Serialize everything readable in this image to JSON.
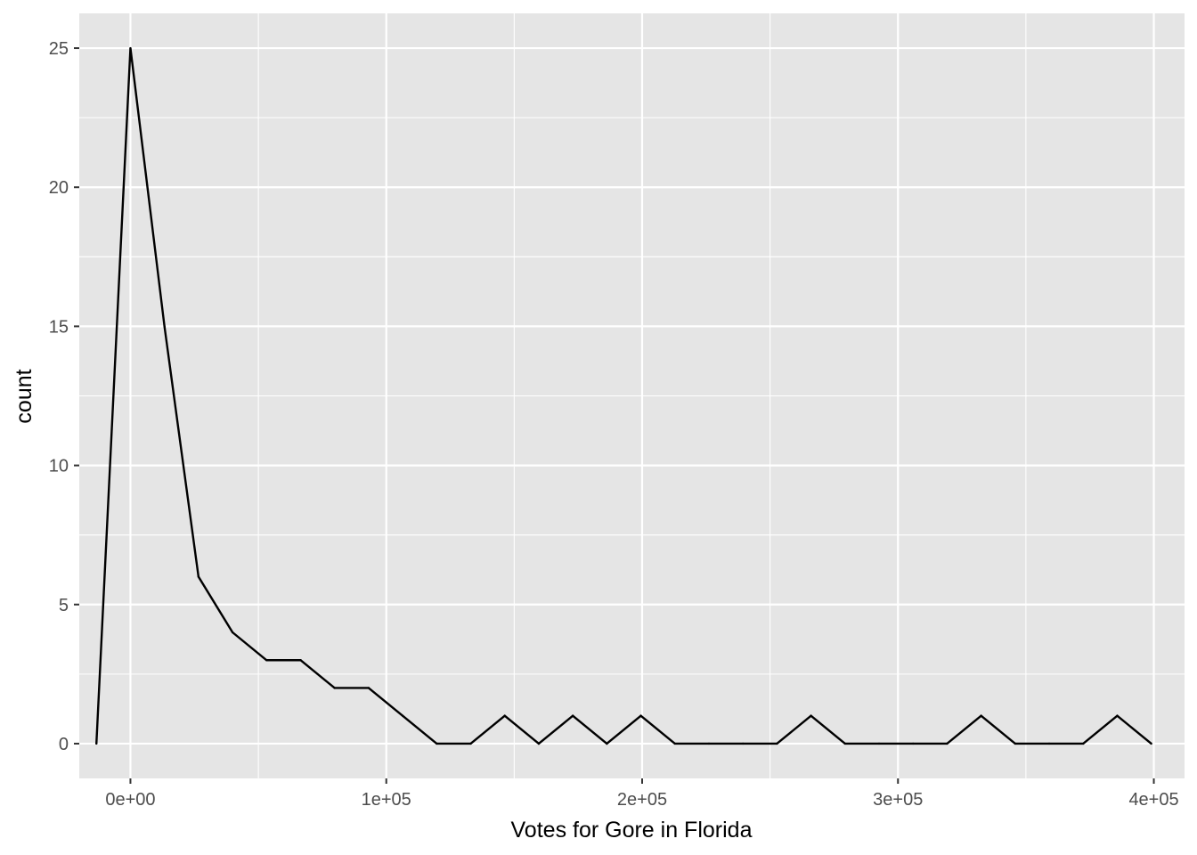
{
  "chart_data": {
    "type": "line",
    "xlabel": "Votes for Gore in Florida",
    "ylabel": "count",
    "xlim": [
      -20000,
      412000
    ],
    "ylim": [
      -1.25,
      26.25
    ],
    "x_ticks": [
      {
        "value": 0,
        "label": "0e+00"
      },
      {
        "value": 100000,
        "label": "1e+05"
      },
      {
        "value": 200000,
        "label": "2e+05"
      },
      {
        "value": 300000,
        "label": "3e+05"
      },
      {
        "value": 400000,
        "label": "4e+05"
      }
    ],
    "y_ticks": [
      {
        "value": 0,
        "label": "0"
      },
      {
        "value": 5,
        "label": "5"
      },
      {
        "value": 10,
        "label": "10"
      },
      {
        "value": 15,
        "label": "15"
      },
      {
        "value": 20,
        "label": "20"
      },
      {
        "value": 25,
        "label": "25"
      }
    ],
    "grid": true,
    "series": [
      {
        "x": [
          -13300,
          0,
          13300,
          26600,
          39900,
          53200,
          66500,
          79800,
          93100,
          106400,
          119700,
          133000,
          146300,
          159600,
          172900,
          186200,
          199500,
          212800,
          226100,
          239400,
          252700,
          266000,
          279300,
          292600,
          305900,
          319200,
          332500,
          345800,
          359100,
          372400,
          385700,
          399000
        ],
        "y": [
          0,
          25,
          15,
          6,
          4,
          3,
          3,
          2,
          2,
          1,
          0,
          0,
          1,
          0,
          1,
          0,
          1,
          0,
          0,
          0,
          0,
          1,
          0,
          0,
          0,
          0,
          1,
          0,
          0,
          0,
          1,
          0
        ]
      }
    ],
    "colors": {
      "panel_background": "#e5e5e5",
      "grid": "#ffffff",
      "line": "#000000"
    }
  }
}
